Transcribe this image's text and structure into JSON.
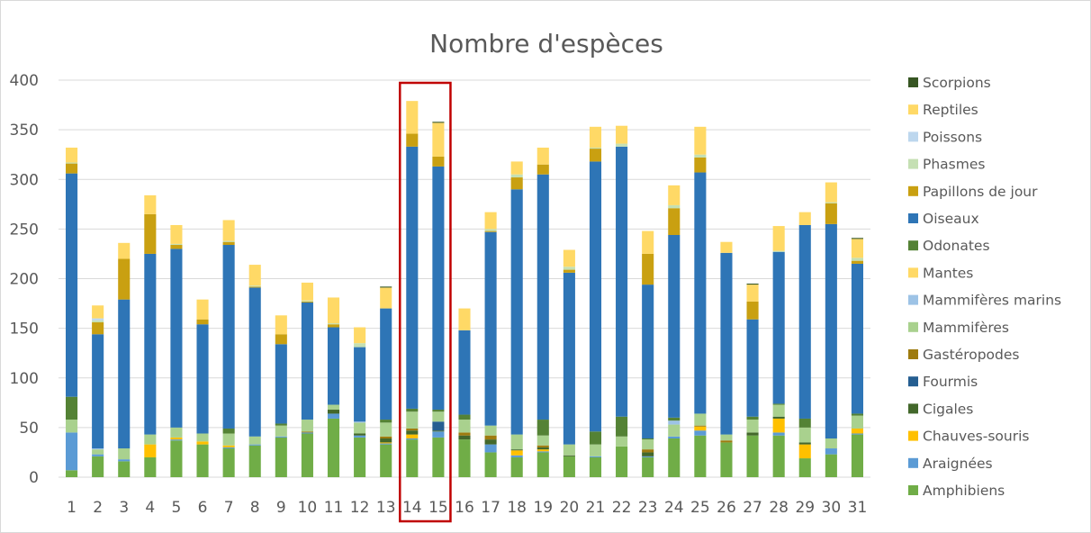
{
  "chart_data": {
    "type": "bar",
    "stacked": true,
    "title": "Nombre d'espèces",
    "xlabel": "",
    "ylabel": "",
    "ylim": [
      0,
      400
    ],
    "yticks": [
      0,
      50,
      100,
      150,
      200,
      250,
      300,
      350,
      400
    ],
    "grid": true,
    "legend_position": "right",
    "categories": [
      "1",
      "2",
      "3",
      "4",
      "5",
      "6",
      "7",
      "8",
      "9",
      "10",
      "11",
      "12",
      "13",
      "14",
      "15",
      "16",
      "17",
      "18",
      "19",
      "20",
      "21",
      "22",
      "23",
      "24",
      "25",
      "26",
      "27",
      "28",
      "29",
      "30",
      "31"
    ],
    "highlight": {
      "categories": [
        "14",
        "15"
      ],
      "color": "#c00000"
    },
    "series": [
      {
        "name": "Amphibiens",
        "color": "#70ad47",
        "values": [
          7,
          21,
          16,
          20,
          37,
          33,
          29,
          32,
          40,
          44,
          59,
          40,
          33,
          38,
          40,
          38,
          25,
          20,
          25,
          21,
          20,
          31,
          20,
          39,
          42,
          35,
          42,
          42,
          19,
          23,
          43
        ]
      },
      {
        "name": "Araignées",
        "color": "#5b9bd5",
        "values": [
          38,
          2,
          2,
          0,
          1,
          0,
          1,
          1,
          1,
          1,
          5,
          2,
          1,
          1,
          6,
          0,
          8,
          2,
          1,
          0,
          1,
          0,
          1,
          2,
          5,
          0,
          0,
          3,
          0,
          6,
          1
        ]
      },
      {
        "name": "Chauves-souris",
        "color": "#ffc000",
        "values": [
          0,
          0,
          0,
          13,
          2,
          3,
          2,
          0,
          0,
          0,
          0,
          0,
          1,
          4,
          0,
          0,
          0,
          5,
          2,
          0,
          0,
          0,
          0,
          0,
          4,
          0,
          0,
          14,
          14,
          0,
          5
        ]
      },
      {
        "name": "Cigales",
        "color": "#43682b",
        "values": [
          0,
          0,
          0,
          0,
          0,
          0,
          0,
          0,
          0,
          0,
          4,
          2,
          4,
          4,
          1,
          4,
          5,
          1,
          2,
          1,
          0,
          0,
          4,
          0,
          0,
          0,
          3,
          2,
          2,
          0,
          0
        ]
      },
      {
        "name": "Fourmis",
        "color": "#255e91",
        "values": [
          0,
          0,
          0,
          0,
          0,
          0,
          0,
          0,
          0,
          0,
          0,
          0,
          0,
          0,
          9,
          0,
          0,
          0,
          0,
          0,
          0,
          0,
          0,
          0,
          0,
          0,
          0,
          0,
          0,
          0,
          0
        ]
      },
      {
        "name": "Gastéropodes",
        "color": "#9e7b0f",
        "values": [
          0,
          0,
          0,
          0,
          0,
          0,
          0,
          0,
          0,
          1,
          0,
          0,
          2,
          2,
          0,
          3,
          4,
          0,
          2,
          0,
          0,
          0,
          3,
          0,
          1,
          2,
          0,
          0,
          0,
          0,
          0
        ]
      },
      {
        "name": "Mammifères",
        "color": "#a9d18e",
        "values": [
          13,
          5,
          11,
          10,
          10,
          8,
          12,
          8,
          11,
          12,
          5,
          11,
          14,
          17,
          10,
          13,
          10,
          15,
          10,
          11,
          12,
          10,
          10,
          12,
          12,
          6,
          13,
          12,
          15,
          10,
          13
        ]
      },
      {
        "name": "Mammifères marins",
        "color": "#9dc3e6",
        "values": [
          0,
          1,
          0,
          0,
          0,
          0,
          0,
          0,
          0,
          0,
          0,
          1,
          0,
          0,
          0,
          0,
          0,
          0,
          0,
          0,
          0,
          0,
          0,
          4,
          0,
          0,
          0,
          0,
          0,
          0,
          0
        ]
      },
      {
        "name": "Mantes",
        "color": "#ffd966",
        "values": [
          0,
          0,
          0,
          0,
          0,
          0,
          0,
          0,
          0,
          0,
          0,
          0,
          0,
          0,
          0,
          0,
          0,
          0,
          0,
          0,
          0,
          0,
          0,
          0,
          0,
          0,
          0,
          0,
          0,
          0,
          0
        ]
      },
      {
        "name": "Odonates",
        "color": "#548235",
        "values": [
          23,
          0,
          0,
          0,
          0,
          0,
          5,
          0,
          2,
          0,
          0,
          0,
          3,
          3,
          2,
          5,
          0,
          0,
          16,
          0,
          13,
          20,
          1,
          3,
          0,
          0,
          3,
          1,
          9,
          0,
          2
        ]
      },
      {
        "name": "Oiseaux",
        "color": "#2e75b6",
        "values": [
          225,
          115,
          150,
          182,
          180,
          110,
          185,
          150,
          80,
          118,
          78,
          75,
          112,
          264,
          245,
          85,
          195,
          247,
          247,
          173,
          272,
          272,
          155,
          184,
          243,
          183,
          98,
          153,
          195,
          216,
          151
        ]
      },
      {
        "name": "Papillons de jour",
        "color": "#c9a011",
        "values": [
          10,
          12,
          41,
          40,
          4,
          5,
          3,
          1,
          10,
          1,
          3,
          0,
          0,
          13,
          10,
          0,
          1,
          12,
          10,
          3,
          13,
          0,
          31,
          27,
          15,
          0,
          18,
          0,
          0,
          21,
          3
        ]
      },
      {
        "name": "Phasmes",
        "color": "#c5e0b3",
        "values": [
          1,
          2,
          0,
          0,
          1,
          0,
          1,
          1,
          0,
          1,
          1,
          4,
          0,
          0,
          0,
          0,
          2,
          3,
          0,
          3,
          1,
          3,
          0,
          3,
          3,
          0,
          0,
          1,
          0,
          1,
          3
        ]
      },
      {
        "name": "Poissons",
        "color": "#bdd7ee",
        "values": [
          0,
          2,
          0,
          0,
          0,
          0,
          0,
          0,
          0,
          0,
          0,
          0,
          0,
          0,
          0,
          0,
          0,
          0,
          0,
          0,
          0,
          0,
          0,
          0,
          0,
          0,
          0,
          0,
          0,
          0,
          0
        ]
      },
      {
        "name": "Reptiles",
        "color": "#ffd966",
        "values": [
          15,
          13,
          16,
          19,
          19,
          20,
          21,
          21,
          19,
          18,
          26,
          16,
          21,
          33,
          34,
          22,
          17,
          13,
          17,
          17,
          21,
          18,
          23,
          20,
          28,
          11,
          17,
          25,
          13,
          20,
          19
        ]
      },
      {
        "name": "Scorpions",
        "color": "#375623",
        "values": [
          0,
          0,
          0,
          0,
          0,
          0,
          0,
          0,
          0,
          0,
          0,
          0,
          1,
          0,
          1,
          0,
          0,
          0,
          0,
          0,
          0,
          0,
          0,
          0,
          0,
          0,
          1,
          0,
          0,
          0,
          1
        ]
      }
    ]
  }
}
